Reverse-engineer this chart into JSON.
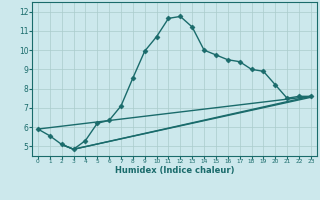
{
  "title": "",
  "xlabel": "Humidex (Indice chaleur)",
  "ylabel": "",
  "bg_color": "#cce8ec",
  "line_color": "#1a6b6b",
  "grid_color": "#aacccc",
  "xlim": [
    -0.5,
    23.5
  ],
  "ylim": [
    4.5,
    12.5
  ],
  "xticks": [
    0,
    1,
    2,
    3,
    4,
    5,
    6,
    7,
    8,
    9,
    10,
    11,
    12,
    13,
    14,
    15,
    16,
    17,
    18,
    19,
    20,
    21,
    22,
    23
  ],
  "yticks": [
    5,
    6,
    7,
    8,
    9,
    10,
    11,
    12
  ],
  "series": [
    {
      "x": [
        0,
        1,
        2,
        3,
        4,
        5,
        6,
        7,
        8,
        9,
        10,
        11,
        12,
        13,
        14,
        15,
        16,
        17,
        18,
        19,
        20,
        21,
        22,
        23
      ],
      "y": [
        5.9,
        5.55,
        5.1,
        4.85,
        5.3,
        6.2,
        6.35,
        7.1,
        8.55,
        9.95,
        10.7,
        11.65,
        11.75,
        11.2,
        10.0,
        9.75,
        9.5,
        9.4,
        9.0,
        8.9,
        8.2,
        7.5,
        7.6,
        7.6
      ],
      "marker": "D",
      "markersize": 2.5,
      "linewidth": 1.0
    },
    {
      "x": [
        2,
        3,
        23
      ],
      "y": [
        5.1,
        4.85,
        7.6
      ],
      "marker": null,
      "markersize": 0,
      "linewidth": 1.0
    },
    {
      "x": [
        2,
        3,
        23
      ],
      "y": [
        5.1,
        4.85,
        7.55
      ],
      "marker": null,
      "markersize": 0,
      "linewidth": 1.0
    },
    {
      "x": [
        0,
        23
      ],
      "y": [
        5.9,
        7.6
      ],
      "marker": null,
      "markersize": 0,
      "linewidth": 1.0
    }
  ]
}
